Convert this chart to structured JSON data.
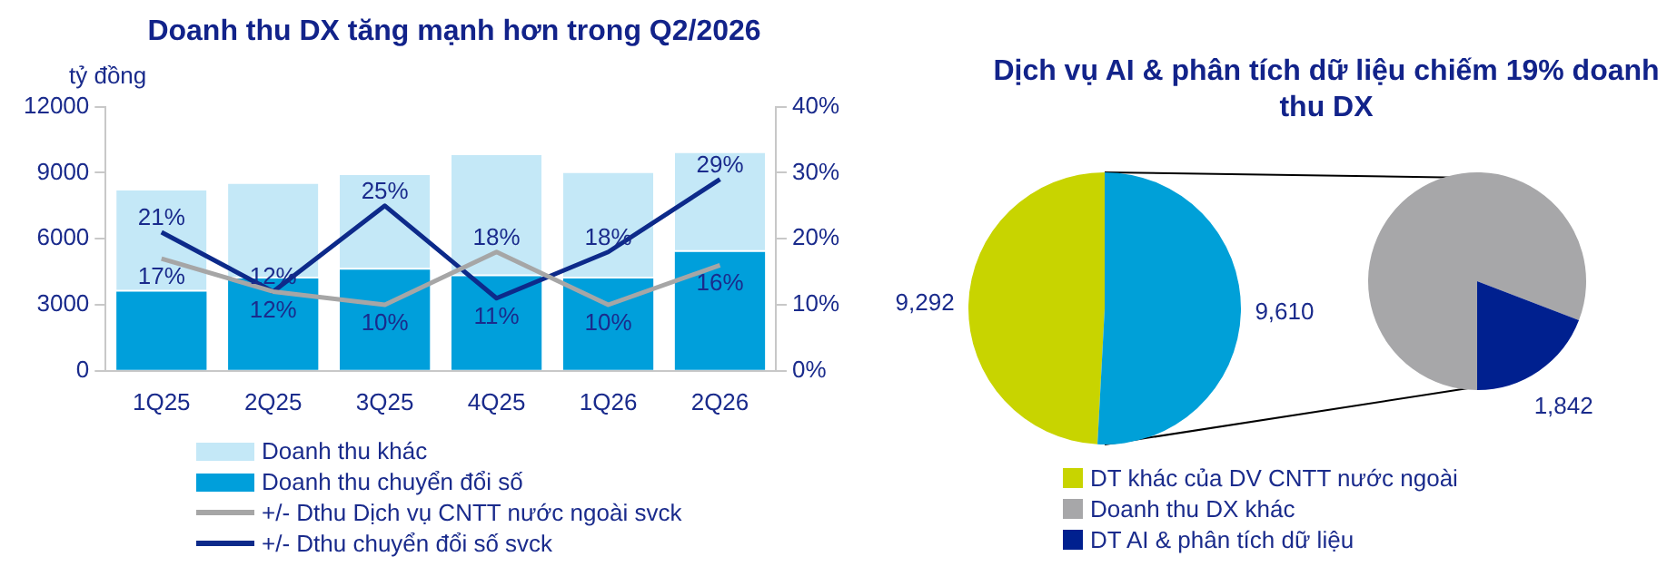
{
  "chart_data": [
    {
      "type": "bar",
      "title": "Doanh thu DX tăng mạnh hơn trong Q2/2026",
      "ylabel": "tỷ đồng",
      "categories": [
        "1Q25",
        "2Q25",
        "3Q25",
        "4Q25",
        "1Q26",
        "2Q26"
      ],
      "stacked": true,
      "series": [
        {
          "name": "Doanh thu chuyển đổi số",
          "color": "#009fdb",
          "values": [
            3600,
            4200,
            4600,
            4300,
            4200,
            5400
          ]
        },
        {
          "name": "Doanh thu khác",
          "color": "#c4e8f7",
          "values": [
            4600,
            4300,
            4300,
            5500,
            4800,
            4500
          ]
        },
        {
          "name": "+/- Dthu Dịch vụ CNTT nước ngoài svck",
          "type": "line",
          "axis": "y2",
          "color": "#a6a6a6",
          "values": [
            17,
            12,
            10,
            18,
            10,
            16
          ],
          "value_labels": [
            "17%",
            "12%",
            "10%",
            "18%",
            "10%",
            "16%"
          ]
        },
        {
          "name": "+/- Dthu chuyển đổi số svck",
          "type": "line",
          "axis": "y2",
          "color": "#0d2a8a",
          "values": [
            21,
            12,
            25,
            11,
            18,
            29
          ],
          "value_labels": [
            "21%",
            "12%",
            "25%",
            "11%",
            "18%",
            "29%"
          ]
        }
      ],
      "ylim": [
        0,
        12000
      ],
      "yticks": [
        0,
        3000,
        6000,
        9000,
        12000
      ],
      "y2lim": [
        0,
        40
      ],
      "y2ticks": [
        {
          "value": 0,
          "label": "0%"
        },
        {
          "value": 10,
          "label": "10%"
        },
        {
          "value": 20,
          "label": "20%"
        },
        {
          "value": 30,
          "label": "30%"
        },
        {
          "value": 40,
          "label": "40%"
        }
      ],
      "grid": false,
      "legend": "bottom",
      "marker": "none"
    },
    {
      "type": "pie",
      "title": "Dịch vụ AI & phân tích dữ liệu chiếm 19% doanh thu DX",
      "categories": [
        "DT khác của DV CNTT nước ngoài",
        null
      ],
      "values": [
        9292,
        9610
      ],
      "colors": [
        "#c8d400",
        "#00a0d8"
      ],
      "value_labels": [
        "9,292",
        "9,610"
      ],
      "legend": "bottom"
    },
    {
      "type": "pie",
      "categories": [
        "Doanh thu DX khác",
        "DT AI & phân tích dữ liệu"
      ],
      "values": [
        7768,
        1842
      ],
      "colors": [
        "#a7a7a9",
        "#00208f"
      ],
      "value_labels": [
        null,
        "1,842"
      ],
      "legend": "bottom"
    }
  ]
}
